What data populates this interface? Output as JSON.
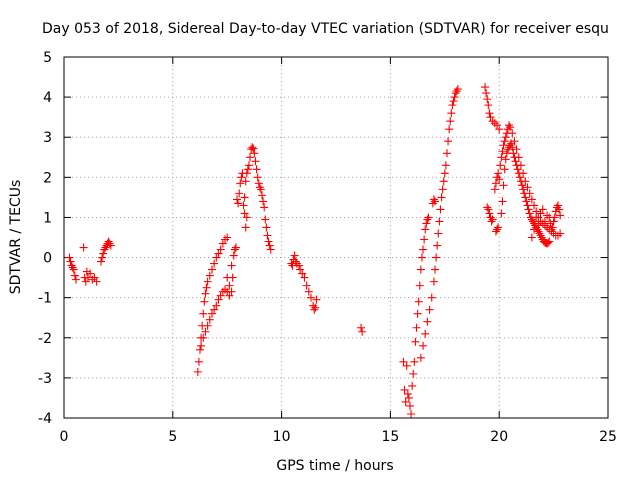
{
  "chart_data": {
    "type": "scatter",
    "title": "Day 053 of 2018, Sidereal Day-to-day VTEC variation (SDTVAR) for receiver esqu",
    "xlabel": "GPS time / hours",
    "ylabel": "SDTVAR / TECUs",
    "xlim": [
      0,
      25
    ],
    "ylim": [
      -4,
      5
    ],
    "xticks": [
      "0",
      "5",
      "10",
      "15",
      "20",
      "25"
    ],
    "yticks": [
      "-4",
      "-3",
      "-2",
      "-1",
      "0",
      "1",
      "2",
      "3",
      "4",
      "5"
    ],
    "grid": true,
    "marker": "plus",
    "color": "#ff0000",
    "series": [
      {
        "name": "SDTVAR",
        "points": [
          [
            0.25,
            0.0
          ],
          [
            0.3,
            -0.1
          ],
          [
            0.35,
            -0.2
          ],
          [
            0.4,
            -0.25
          ],
          [
            0.45,
            -0.3
          ],
          [
            0.5,
            -0.45
          ],
          [
            0.55,
            -0.55
          ],
          [
            0.9,
            0.25
          ],
          [
            0.95,
            -0.5
          ],
          [
            1.0,
            -0.6
          ],
          [
            1.05,
            -0.35
          ],
          [
            1.1,
            -0.5
          ],
          [
            1.2,
            -0.4
          ],
          [
            1.3,
            -0.55
          ],
          [
            1.4,
            -0.5
          ],
          [
            1.5,
            -0.6
          ],
          [
            1.7,
            -0.1
          ],
          [
            1.75,
            0.0
          ],
          [
            1.8,
            0.1
          ],
          [
            1.85,
            0.2
          ],
          [
            1.9,
            0.25
          ],
          [
            1.95,
            0.3
          ],
          [
            2.0,
            0.35
          ],
          [
            2.05,
            0.4
          ],
          [
            2.1,
            0.35
          ],
          [
            2.15,
            0.3
          ],
          [
            6.15,
            -2.85
          ],
          [
            6.2,
            -2.6
          ],
          [
            6.25,
            -2.3
          ],
          [
            6.3,
            -2.0
          ],
          [
            6.35,
            -1.7
          ],
          [
            6.4,
            -1.4
          ],
          [
            6.45,
            -1.1
          ],
          [
            6.5,
            -0.9
          ],
          [
            6.55,
            -0.75
          ],
          [
            6.6,
            -0.6
          ],
          [
            6.7,
            -0.45
          ],
          [
            6.8,
            -0.3
          ],
          [
            6.9,
            -0.15
          ],
          [
            7.0,
            0.0
          ],
          [
            7.1,
            0.1
          ],
          [
            7.2,
            0.2
          ],
          [
            7.3,
            0.35
          ],
          [
            7.4,
            0.45
          ],
          [
            7.5,
            0.5
          ],
          [
            6.3,
            -2.2
          ],
          [
            6.4,
            -2.0
          ],
          [
            6.5,
            -1.85
          ],
          [
            6.6,
            -1.7
          ],
          [
            6.7,
            -1.55
          ],
          [
            6.8,
            -1.4
          ],
          [
            6.9,
            -1.3
          ],
          [
            7.0,
            -1.2
          ],
          [
            7.1,
            -1.05
          ],
          [
            7.2,
            -0.95
          ],
          [
            7.3,
            -0.85
          ],
          [
            7.4,
            -0.8
          ],
          [
            7.5,
            -0.85
          ],
          [
            7.6,
            -0.95
          ],
          [
            7.7,
            -0.85
          ],
          [
            7.75,
            -0.5
          ],
          [
            7.8,
            0.05
          ],
          [
            7.85,
            0.2
          ],
          [
            7.9,
            0.25
          ],
          [
            7.5,
            -0.5
          ],
          [
            7.6,
            -0.7
          ],
          [
            7.7,
            -0.2
          ],
          [
            7.95,
            1.45
          ],
          [
            8.0,
            1.35
          ],
          [
            8.05,
            1.6
          ],
          [
            8.1,
            1.85
          ],
          [
            8.15,
            2.0
          ],
          [
            8.2,
            2.1
          ],
          [
            8.25,
            1.3
          ],
          [
            8.3,
            1.1
          ],
          [
            8.35,
            0.75
          ],
          [
            8.4,
            1.0
          ],
          [
            8.3,
            1.5
          ],
          [
            8.35,
            1.9
          ],
          [
            8.4,
            2.1
          ],
          [
            8.45,
            2.2
          ],
          [
            8.5,
            2.3
          ],
          [
            8.55,
            2.5
          ],
          [
            8.6,
            2.7
          ],
          [
            8.65,
            2.75
          ],
          [
            8.7,
            2.72
          ],
          [
            8.75,
            2.6
          ],
          [
            8.8,
            2.4
          ],
          [
            8.85,
            2.2
          ],
          [
            8.9,
            2.0
          ],
          [
            8.95,
            1.85
          ],
          [
            9.0,
            1.75
          ],
          [
            9.05,
            1.7
          ],
          [
            9.1,
            1.55
          ],
          [
            9.15,
            1.4
          ],
          [
            9.2,
            1.25
          ],
          [
            9.25,
            0.95
          ],
          [
            9.3,
            0.75
          ],
          [
            9.35,
            0.55
          ],
          [
            9.4,
            0.4
          ],
          [
            9.45,
            0.3
          ],
          [
            9.5,
            0.2
          ],
          [
            10.45,
            -0.15
          ],
          [
            10.5,
            -0.2
          ],
          [
            10.55,
            -0.05
          ],
          [
            10.6,
            0.05
          ],
          [
            10.65,
            -0.1
          ],
          [
            10.7,
            -0.15
          ],
          [
            10.8,
            -0.2
          ],
          [
            10.85,
            -0.3
          ],
          [
            10.95,
            -0.4
          ],
          [
            11.05,
            -0.5
          ],
          [
            11.15,
            -0.7
          ],
          [
            11.25,
            -0.85
          ],
          [
            11.35,
            -1.0
          ],
          [
            11.45,
            -1.2
          ],
          [
            11.5,
            -1.3
          ],
          [
            11.55,
            -1.25
          ],
          [
            11.6,
            -1.05
          ],
          [
            13.65,
            -1.75
          ],
          [
            13.7,
            -1.85
          ],
          [
            15.6,
            -2.6
          ],
          [
            15.65,
            -3.3
          ],
          [
            15.7,
            -3.6
          ],
          [
            15.75,
            -2.7
          ],
          [
            15.8,
            -3.4
          ],
          [
            15.85,
            -3.5
          ],
          [
            15.9,
            -3.7
          ],
          [
            15.95,
            -3.9
          ],
          [
            16.0,
            -3.2
          ],
          [
            16.05,
            -2.9
          ],
          [
            16.1,
            -2.6
          ],
          [
            16.15,
            -2.1
          ],
          [
            16.2,
            -1.75
          ],
          [
            16.25,
            -1.4
          ],
          [
            16.3,
            -1.1
          ],
          [
            16.35,
            -0.7
          ],
          [
            16.4,
            -0.3
          ],
          [
            16.45,
            0.0
          ],
          [
            16.5,
            0.2
          ],
          [
            16.55,
            0.45
          ],
          [
            16.6,
            0.7
          ],
          [
            16.65,
            0.85
          ],
          [
            16.7,
            0.95
          ],
          [
            16.75,
            1.0
          ],
          [
            16.4,
            -2.5
          ],
          [
            16.5,
            -2.2
          ],
          [
            16.6,
            -1.9
          ],
          [
            16.7,
            -1.6
          ],
          [
            16.8,
            -1.3
          ],
          [
            16.9,
            -1.0
          ],
          [
            17.0,
            -0.6
          ],
          [
            17.05,
            -0.3
          ],
          [
            17.1,
            0.0
          ],
          [
            17.15,
            0.3
          ],
          [
            17.2,
            0.6
          ],
          [
            17.25,
            0.9
          ],
          [
            17.3,
            1.2
          ],
          [
            17.35,
            1.5
          ],
          [
            17.4,
            1.7
          ],
          [
            17.45,
            1.9
          ],
          [
            17.5,
            2.1
          ],
          [
            17.55,
            2.3
          ],
          [
            17.6,
            2.6
          ],
          [
            17.65,
            2.9
          ],
          [
            17.7,
            3.2
          ],
          [
            17.75,
            3.4
          ],
          [
            17.8,
            3.6
          ],
          [
            17.85,
            3.8
          ],
          [
            17.9,
            3.9
          ],
          [
            17.95,
            4.0
          ],
          [
            18.0,
            4.1
          ],
          [
            18.05,
            4.15
          ],
          [
            18.1,
            4.2
          ],
          [
            16.95,
            1.35
          ],
          [
            17.0,
            1.45
          ],
          [
            17.05,
            1.4
          ],
          [
            19.35,
            4.25
          ],
          [
            19.4,
            4.1
          ],
          [
            19.45,
            3.95
          ],
          [
            19.5,
            3.8
          ],
          [
            19.55,
            3.6
          ],
          [
            19.6,
            3.5
          ],
          [
            19.7,
            3.4
          ],
          [
            19.8,
            3.35
          ],
          [
            19.9,
            3.3
          ],
          [
            20.0,
            3.2
          ],
          [
            19.45,
            1.25
          ],
          [
            19.5,
            1.2
          ],
          [
            19.55,
            1.1
          ],
          [
            19.6,
            1.0
          ],
          [
            19.65,
            0.9
          ],
          [
            19.7,
            0.95
          ],
          [
            19.85,
            0.65
          ],
          [
            19.9,
            0.7
          ],
          [
            19.95,
            0.75
          ],
          [
            19.8,
            1.7
          ],
          [
            19.85,
            1.85
          ],
          [
            19.9,
            2.0
          ],
          [
            19.95,
            2.1
          ],
          [
            20.0,
            1.95
          ],
          [
            20.05,
            2.3
          ],
          [
            20.1,
            2.5
          ],
          [
            20.15,
            2.65
          ],
          [
            20.2,
            2.8
          ],
          [
            20.25,
            2.9
          ],
          [
            20.3,
            3.0
          ],
          [
            20.35,
            3.1
          ],
          [
            20.4,
            3.2
          ],
          [
            20.45,
            3.3
          ],
          [
            20.5,
            3.25
          ],
          [
            20.1,
            1.1
          ],
          [
            20.15,
            1.4
          ],
          [
            20.2,
            1.8
          ],
          [
            20.25,
            2.2
          ],
          [
            20.3,
            2.45
          ],
          [
            20.35,
            2.6
          ],
          [
            20.4,
            2.7
          ],
          [
            20.45,
            2.75
          ],
          [
            20.5,
            2.8
          ],
          [
            20.55,
            2.85
          ],
          [
            20.6,
            2.75
          ],
          [
            20.65,
            2.6
          ],
          [
            20.7,
            2.5
          ],
          [
            20.75,
            2.4
          ],
          [
            20.8,
            2.3
          ],
          [
            20.85,
            2.2
          ],
          [
            20.9,
            2.1
          ],
          [
            20.95,
            2.0
          ],
          [
            21.0,
            1.9
          ],
          [
            21.05,
            1.8
          ],
          [
            21.1,
            1.7
          ],
          [
            21.15,
            1.6
          ],
          [
            21.2,
            1.5
          ],
          [
            21.25,
            1.4
          ],
          [
            21.3,
            1.3
          ],
          [
            21.35,
            1.2
          ],
          [
            21.4,
            1.1
          ],
          [
            21.45,
            1.0
          ],
          [
            21.5,
            0.95
          ],
          [
            21.55,
            0.9
          ],
          [
            21.6,
            0.85
          ],
          [
            21.65,
            0.8
          ],
          [
            21.7,
            0.75
          ],
          [
            21.75,
            0.7
          ],
          [
            21.8,
            0.65
          ],
          [
            21.85,
            0.6
          ],
          [
            21.9,
            0.55
          ],
          [
            21.95,
            0.5
          ],
          [
            22.0,
            0.45
          ],
          [
            22.05,
            0.4
          ],
          [
            22.1,
            0.38
          ],
          [
            22.15,
            0.36
          ],
          [
            22.2,
            0.35
          ],
          [
            22.25,
            0.37
          ],
          [
            22.3,
            0.4
          ],
          [
            20.6,
            3.1
          ],
          [
            20.7,
            2.9
          ],
          [
            20.8,
            2.7
          ],
          [
            20.9,
            2.5
          ],
          [
            21.0,
            2.3
          ],
          [
            21.1,
            2.1
          ],
          [
            21.2,
            1.9
          ],
          [
            21.3,
            1.75
          ],
          [
            21.4,
            1.6
          ],
          [
            21.5,
            1.45
          ],
          [
            21.6,
            1.3
          ],
          [
            21.7,
            1.15
          ],
          [
            21.8,
            1.0
          ],
          [
            21.9,
            0.9
          ],
          [
            22.0,
            0.85
          ],
          [
            22.1,
            0.8
          ],
          [
            22.2,
            0.75
          ],
          [
            22.3,
            0.7
          ],
          [
            22.4,
            0.65
          ],
          [
            22.5,
            0.6
          ],
          [
            22.6,
            0.55
          ],
          [
            22.7,
            0.55
          ],
          [
            22.8,
            0.6
          ],
          [
            21.5,
            0.5
          ],
          [
            21.6,
            0.7
          ],
          [
            21.7,
            1.0
          ],
          [
            21.8,
            0.8
          ],
          [
            21.9,
            1.1
          ],
          [
            22.0,
            1.2
          ],
          [
            22.1,
            0.9
          ],
          [
            22.2,
            1.05
          ],
          [
            22.3,
            1.0
          ],
          [
            22.35,
            0.85
          ],
          [
            22.4,
            0.7
          ],
          [
            22.45,
            0.75
          ],
          [
            22.5,
            0.9
          ],
          [
            22.55,
            1.0
          ],
          [
            22.6,
            1.15
          ],
          [
            22.65,
            1.25
          ],
          [
            22.7,
            1.3
          ],
          [
            22.75,
            1.2
          ],
          [
            22.8,
            1.05
          ]
        ]
      }
    ]
  }
}
